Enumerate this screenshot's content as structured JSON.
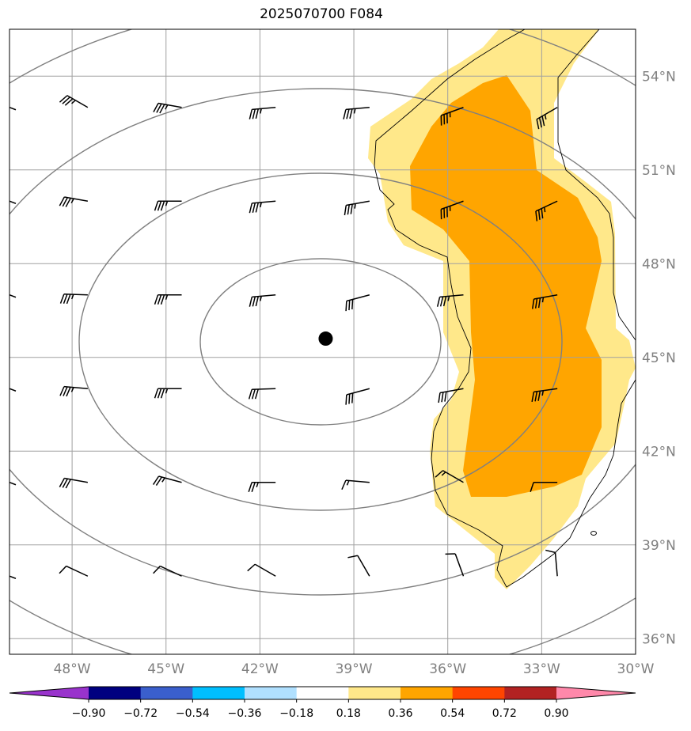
{
  "title": "2025070700 F084",
  "map": {
    "lon_range": [
      -50,
      -30
    ],
    "lat_range": [
      35.5,
      55.5
    ],
    "lon_ticks": [
      {
        "value": -48,
        "label": "48°W"
      },
      {
        "value": -45,
        "label": "45°W"
      },
      {
        "value": -42,
        "label": "42°W"
      },
      {
        "value": -39,
        "label": "39°W"
      },
      {
        "value": -36,
        "label": "36°W"
      },
      {
        "value": -33,
        "label": "33°W"
      },
      {
        "value": -30,
        "label": "30°W"
      }
    ],
    "lat_ticks": [
      {
        "value": 54,
        "label": "54°N"
      },
      {
        "value": 51,
        "label": "51°N"
      },
      {
        "value": 48,
        "label": "48°N"
      },
      {
        "value": 45,
        "label": "45°N"
      },
      {
        "value": 42,
        "label": "42°N"
      },
      {
        "value": 39,
        "label": "39°N"
      },
      {
        "value": 36,
        "label": "36°N"
      }
    ],
    "gridlines": true,
    "center_marker": {
      "lon": -39.9,
      "lat": 45.6
    },
    "contour_color": "#808080",
    "gridline_color": "#a0a0a0"
  },
  "colorbar": {
    "colors": [
      "#9933cc",
      "#000080",
      "#3a5fcd",
      "#00bfff",
      "#b0e0ff",
      "#ffffff",
      "#ffe88a",
      "#ffa500",
      "#ff4500",
      "#b22222",
      "#ff88aa"
    ],
    "labels": [
      "−0.90",
      "−0.72",
      "−0.54",
      "−0.36",
      "−0.18",
      "0.18",
      "0.36",
      "0.54",
      "0.72",
      "0.90"
    ],
    "extend": "both"
  },
  "shading": {
    "light_color": "#ffe88a",
    "dark_color": "#ffa500"
  },
  "wind_barbs": {
    "lons": [
      -47.5,
      -44.5,
      -41.5,
      -38.5,
      -35.5,
      -32.5
    ],
    "lats": [
      53,
      50,
      47,
      44,
      41,
      38
    ],
    "rows": [
      {
        "lat": 53,
        "barbs": [
          {
            "dir": 300,
            "spd": 35
          },
          {
            "dir": 280,
            "spd": 35
          },
          {
            "dir": 265,
            "spd": 35
          },
          {
            "dir": 265,
            "spd": 35
          },
          {
            "dir": 250,
            "spd": 35
          },
          {
            "dir": 240,
            "spd": 35
          }
        ]
      },
      {
        "lat": 50,
        "barbs": [
          {
            "dir": 280,
            "spd": 35
          },
          {
            "dir": 270,
            "spd": 35
          },
          {
            "dir": 265,
            "spd": 35
          },
          {
            "dir": 260,
            "spd": 35
          },
          {
            "dir": 250,
            "spd": 35
          },
          {
            "dir": 245,
            "spd": 35
          }
        ]
      },
      {
        "lat": 47,
        "barbs": [
          {
            "dir": 272,
            "spd": 35
          },
          {
            "dir": 270,
            "spd": 35
          },
          {
            "dir": 265,
            "spd": 35
          },
          {
            "dir": 255,
            "spd": 30
          },
          {
            "dir": 265,
            "spd": 35
          },
          {
            "dir": 260,
            "spd": 35
          }
        ]
      },
      {
        "lat": 44,
        "barbs": [
          {
            "dir": 275,
            "spd": 35
          },
          {
            "dir": 270,
            "spd": 35
          },
          {
            "dir": 268,
            "spd": 30
          },
          {
            "dir": 255,
            "spd": 30
          },
          {
            "dir": 260,
            "spd": 30
          },
          {
            "dir": 262,
            "spd": 35
          }
        ]
      },
      {
        "lat": 41,
        "barbs": [
          {
            "dir": 280,
            "spd": 30
          },
          {
            "dir": 285,
            "spd": 25
          },
          {
            "dir": 270,
            "spd": 25
          },
          {
            "dir": 275,
            "spd": 15
          },
          {
            "dir": 300,
            "spd": 15
          },
          {
            "dir": 270,
            "spd": 10
          }
        ]
      },
      {
        "lat": 38,
        "barbs": [
          {
            "dir": 295,
            "spd": 10
          },
          {
            "dir": 295,
            "spd": 10
          },
          {
            "dir": 300,
            "spd": 10
          },
          {
            "dir": 330,
            "spd": 10
          },
          {
            "dir": 340,
            "spd": 10
          },
          {
            "dir": 355,
            "spd": 10
          }
        ]
      }
    ]
  }
}
